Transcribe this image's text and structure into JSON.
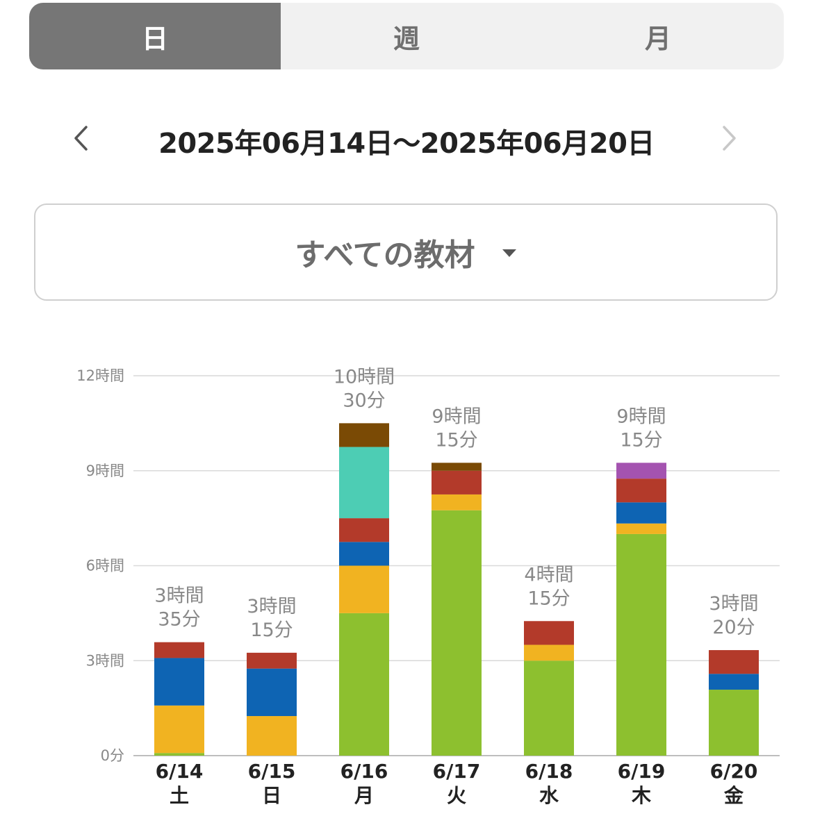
{
  "tabs": [
    {
      "label": "日",
      "active": true
    },
    {
      "label": "週",
      "active": false
    },
    {
      "label": "月",
      "active": false
    }
  ],
  "date_range": "2025年06月14日〜2025年06月20日",
  "nav": {
    "prev_icon": "chevron-left-icon",
    "next_icon": "chevron-right-icon",
    "next_enabled": false
  },
  "filter": {
    "label": "すべての教材",
    "icon": "caret-down-icon"
  },
  "colors": {
    "active_tab_bg": "#767676",
    "green": "#8dc02f",
    "yellow": "#f1b321",
    "blue": "#0e64b3",
    "red": "#b33a2a",
    "teal": "#4dcdb4",
    "brown": "#7a4a05",
    "purple": "#a453b0"
  },
  "chart_data": {
    "type": "bar",
    "stacked": true,
    "categories": [
      "6/14",
      "6/15",
      "6/16",
      "6/17",
      "6/18",
      "6/19",
      "6/20"
    ],
    "weekdays": [
      "土",
      "日",
      "月",
      "火",
      "水",
      "木",
      "金"
    ],
    "ylim_minutes": [
      0,
      720
    ],
    "yticks": [
      {
        "value": 0,
        "label": "0分"
      },
      {
        "value": 180,
        "label": "3時間"
      },
      {
        "value": 360,
        "label": "6時間"
      },
      {
        "value": 540,
        "label": "9時間"
      },
      {
        "value": 720,
        "label": "12時間"
      }
    ],
    "totals": [
      [
        "3時間",
        "35分"
      ],
      [
        "3時間",
        "15分"
      ],
      [
        "10時間",
        "30分"
      ],
      [
        "9時間",
        "15分"
      ],
      [
        "4時間",
        "15分"
      ],
      [
        "9時間",
        "15分"
      ],
      [
        "3時間",
        "20分"
      ]
    ],
    "series": [
      {
        "color": "#8dc02f",
        "values": [
          5,
          0,
          270,
          465,
          180,
          420,
          125
        ]
      },
      {
        "color": "#f1b321",
        "values": [
          90,
          75,
          90,
          30,
          30,
          20,
          0
        ]
      },
      {
        "color": "#0e64b3",
        "values": [
          90,
          90,
          45,
          0,
          0,
          40,
          30
        ]
      },
      {
        "color": "#b33a2a",
        "values": [
          30,
          30,
          45,
          45,
          45,
          45,
          45
        ]
      },
      {
        "color": "#4dcdb4",
        "values": [
          0,
          0,
          135,
          0,
          0,
          0,
          0
        ]
      },
      {
        "color": "#7a4a05",
        "values": [
          0,
          0,
          45,
          15,
          0,
          0,
          0
        ]
      },
      {
        "color": "#a453b0",
        "values": [
          0,
          0,
          0,
          0,
          0,
          30,
          0
        ]
      }
    ]
  }
}
